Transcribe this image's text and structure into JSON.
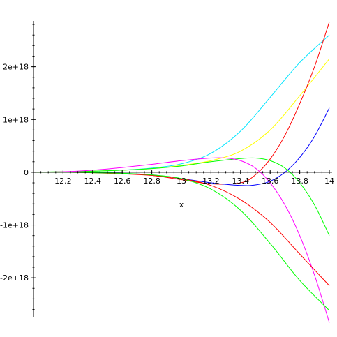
{
  "chart_data": {
    "type": "line",
    "title": "",
    "xlabel": "x",
    "ylabel": "",
    "xlim": [
      12.0,
      14.0
    ],
    "ylim": [
      -2.95e+18,
      3e+18
    ],
    "grid": false,
    "legend": "none",
    "x_ticks": [
      {
        "value": 12.2,
        "label": "12.2"
      },
      {
        "value": 12.4,
        "label": "12.4"
      },
      {
        "value": 12.6,
        "label": "12.6"
      },
      {
        "value": 12.8,
        "label": "12.8"
      },
      {
        "value": 13.0,
        "label": "13"
      },
      {
        "value": 13.2,
        "label": "13.2"
      },
      {
        "value": 13.4,
        "label": "13.4"
      },
      {
        "value": 13.6,
        "label": "13.6"
      },
      {
        "value": 13.8,
        "label": "13.8"
      },
      {
        "value": 14.0,
        "label": "14"
      }
    ],
    "y_ticks": [
      {
        "value": 2e+18,
        "label": "2e+18"
      },
      {
        "value": 1e+18,
        "label": "1e+18"
      },
      {
        "value": 0,
        "label": "0"
      },
      {
        "value": -1e+18,
        "label": "-1e+18"
      },
      {
        "value": -2e+18,
        "label": "-2e+18"
      }
    ],
    "series": [
      {
        "color": "#00e5ff",
        "x": [
          12.0,
          12.2,
          12.4,
          12.6,
          12.8,
          13.0,
          13.2,
          13.4,
          13.6,
          13.8,
          14.0
        ],
        "y": [
          0,
          1e+16,
          2e+16,
          4e+16,
          8e+16,
          1.6e+17,
          3.6e+17,
          7.8e+17,
          1.42e+18,
          2.08e+18,
          2.6e+18
        ]
      },
      {
        "color": "#ffff00",
        "x": [
          12.0,
          12.2,
          12.4,
          12.6,
          12.8,
          13.0,
          13.2,
          13.4,
          13.6,
          13.8,
          14.0
        ],
        "y": [
          0,
          1e+16,
          2e+16,
          4e+16,
          7e+16,
          1.3e+17,
          2.2e+17,
          4e+17,
          8e+17,
          1.45e+18,
          2.15e+18
        ]
      },
      {
        "color": "#ff0000",
        "x": [
          12.0,
          12.2,
          12.4,
          12.6,
          12.8,
          13.0,
          13.2,
          13.4,
          13.5,
          13.6,
          13.7,
          13.8,
          13.9,
          14.0
        ],
        "y": [
          0,
          0,
          0,
          -2e+16,
          -6e+16,
          -1.4e+17,
          -2.2e+17,
          -2e+17,
          -5e+16,
          2.5e+17,
          7e+17,
          1.3e+18,
          2e+18,
          2.85e+18
        ]
      },
      {
        "color": "#0000ff",
        "x": [
          12.0,
          12.2,
          12.4,
          12.6,
          12.8,
          13.0,
          13.2,
          13.4,
          13.5,
          13.6,
          13.7,
          13.8,
          13.9,
          14.0
        ],
        "y": [
          0,
          0,
          0,
          -2e+16,
          -5e+16,
          -1.2e+17,
          -2e+17,
          -2.5e+17,
          -2.4e+17,
          -1.7e+17,
          0,
          2.8e+17,
          6.8e+17,
          1.22e+18
        ]
      },
      {
        "color": "#00ff00",
        "x": [
          12.0,
          12.2,
          12.4,
          12.6,
          12.8,
          13.0,
          13.2,
          13.4,
          13.5,
          13.6,
          13.7,
          13.8,
          13.9,
          14.0
        ],
        "y": [
          0,
          1e+16,
          2e+16,
          4e+16,
          7e+16,
          1.2e+17,
          2e+17,
          2.6e+17,
          2.7e+17,
          2.2e+17,
          8e+16,
          -2e+17,
          -6.2e+17,
          -1.2e+18
        ]
      },
      {
        "color": "#ff00ff",
        "x": [
          12.0,
          12.2,
          12.4,
          12.6,
          12.8,
          13.0,
          13.2,
          13.3,
          13.4,
          13.5,
          13.6,
          13.7,
          13.8,
          13.9,
          14.0
        ],
        "y": [
          0,
          1e+16,
          4e+16,
          9e+16,
          1.5e+17,
          2.2e+17,
          2.7e+17,
          2.7e+17,
          2.2e+17,
          8e+16,
          -2e+17,
          -6.2e+17,
          -1.2e+18,
          -1.95e+18,
          -2.85e+18
        ]
      },
      {
        "color": "#ff0000",
        "x": [
          12.0,
          12.2,
          12.4,
          12.6,
          12.8,
          13.0,
          13.2,
          13.4,
          13.6,
          13.8,
          14.0
        ],
        "y": [
          0,
          0,
          -1e+16,
          -3e+16,
          -6e+16,
          -1.2e+17,
          -2.5e+17,
          -5.2e+17,
          -9.5e+17,
          -1.55e+18,
          -2.15e+18
        ]
      },
      {
        "color": "#00ff00",
        "x": [
          12.0,
          12.2,
          12.4,
          12.6,
          12.8,
          13.0,
          13.2,
          13.4,
          13.6,
          13.8,
          14.0
        ],
        "y": [
          0,
          0,
          -1e+16,
          -2e+16,
          -5e+16,
          -1.2e+17,
          -3.2e+17,
          -7.2e+17,
          -1.35e+18,
          -2.05e+18,
          -2.62e+18
        ]
      }
    ]
  }
}
